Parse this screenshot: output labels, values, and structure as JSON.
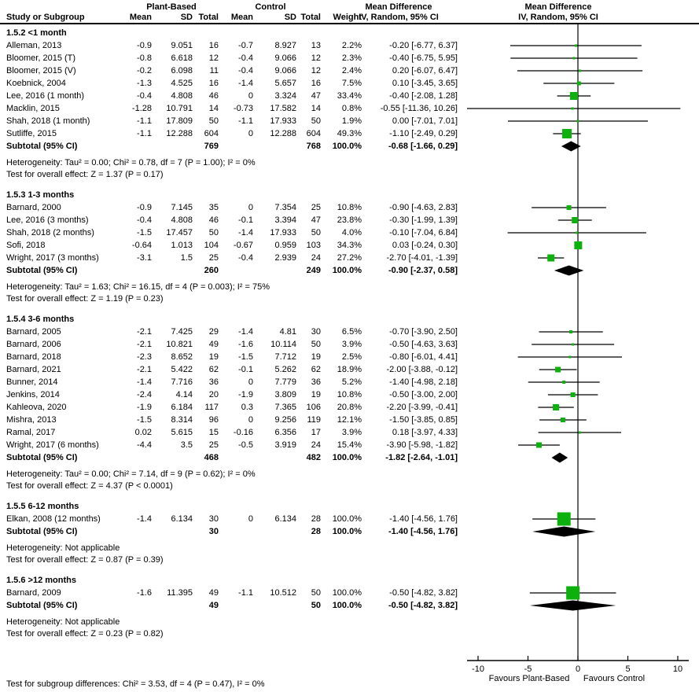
{
  "header": {
    "group1": "Plant-Based",
    "group2": "Control",
    "md_text": "Mean Difference",
    "md_plot": "Mean Difference",
    "study": "Study or Subgroup",
    "mean": "Mean",
    "sd": "SD",
    "total": "Total",
    "weight": "Weight",
    "ci": "IV, Random, 95% CI"
  },
  "labels": {
    "subtotal": "Subtotal (95% CI)"
  },
  "footer": "Test for subgroup differences: Chi² = 3.53, df = 4 (P = 0.47), I² = 0%",
  "axis": {
    "tick_values": [
      -10,
      -5,
      0,
      5,
      10
    ],
    "tick_labels": [
      "-10",
      "-5",
      "0",
      "5",
      "10"
    ],
    "favours_left": "Favours Plant-Based",
    "favours_right": "Favours Control"
  },
  "colors": {
    "square": "#0db10d",
    "diamond": "#000000",
    "line": "#000000",
    "text": "#000000",
    "background": "#ffffff"
  },
  "chart_data": {
    "type": "forest",
    "effect_measure": "Mean Difference  IV, Random, 95% CI",
    "x_range": [
      -11,
      11
    ],
    "groups": [
      {
        "label": "1.5.2 <1 month",
        "studies": [
          {
            "name": "Alleman, 2013",
            "mean1": "-0.9",
            "sd1": "9.051",
            "n1": "16",
            "mean2": "-0.7",
            "sd2": "8.927",
            "n2": "13",
            "weight": "2.2%",
            "weight_pct": 2.2,
            "ci_text": "-0.20 [-6.77, 6.37]",
            "md": -0.2,
            "lo": -6.77,
            "hi": 6.37
          },
          {
            "name": "Bloomer, 2015 (T)",
            "mean1": "-0.8",
            "sd1": "6.618",
            "n1": "12",
            "mean2": "-0.4",
            "sd2": "9.066",
            "n2": "12",
            "weight": "2.3%",
            "weight_pct": 2.3,
            "ci_text": "-0.40 [-6.75, 5.95]",
            "md": -0.4,
            "lo": -6.75,
            "hi": 5.95
          },
          {
            "name": "Bloomer, 2015 (V)",
            "mean1": "-0.2",
            "sd1": "6.098",
            "n1": "11",
            "mean2": "-0.4",
            "sd2": "9.066",
            "n2": "12",
            "weight": "2.4%",
            "weight_pct": 2.4,
            "ci_text": "0.20 [-6.07, 6.47]",
            "md": 0.2,
            "lo": -6.07,
            "hi": 6.47
          },
          {
            "name": "Koebnick, 2004",
            "mean1": "-1.3",
            "sd1": "4.525",
            "n1": "16",
            "mean2": "-1.4",
            "sd2": "5.657",
            "n2": "16",
            "weight": "7.5%",
            "weight_pct": 7.5,
            "ci_text": "0.10 [-3.45, 3.65]",
            "md": 0.1,
            "lo": -3.45,
            "hi": 3.65
          },
          {
            "name": "Lee, 2016 (1 month)",
            "mean1": "-0.4",
            "sd1": "4.808",
            "n1": "46",
            "mean2": "0",
            "sd2": "3.324",
            "n2": "47",
            "weight": "33.4%",
            "weight_pct": 33.4,
            "ci_text": "-0.40 [-2.08, 1.28]",
            "md": -0.4,
            "lo": -2.08,
            "hi": 1.28
          },
          {
            "name": "Macklin, 2015",
            "mean1": "-1.28",
            "sd1": "10.791",
            "n1": "14",
            "mean2": "-0.73",
            "sd2": "17.582",
            "n2": "14",
            "weight": "0.8%",
            "weight_pct": 0.8,
            "ci_text": "-0.55 [-11.36, 10.26]",
            "md": -0.55,
            "lo": -11.36,
            "hi": 10.26
          },
          {
            "name": "Shah, 2018 (1 month)",
            "mean1": "-1.1",
            "sd1": "17.809",
            "n1": "50",
            "mean2": "-1.1",
            "sd2": "17.933",
            "n2": "50",
            "weight": "1.9%",
            "weight_pct": 1.9,
            "ci_text": "0.00 [-7.01, 7.01]",
            "md": 0.0,
            "lo": -7.01,
            "hi": 7.01
          },
          {
            "name": "Sutliffe, 2015",
            "mean1": "-1.1",
            "sd1": "12.288",
            "n1": "604",
            "mean2": "0",
            "sd2": "12.288",
            "n2": "604",
            "weight": "49.3%",
            "weight_pct": 49.3,
            "ci_text": "-1.10 [-2.49, 0.29]",
            "md": -1.1,
            "lo": -2.49,
            "hi": 0.29
          }
        ],
        "subtotal": {
          "n1": "769",
          "n2": "768",
          "weight": "100.0%",
          "ci_text": "-0.68 [-1.66, 0.29]",
          "md": -0.68,
          "lo": -1.66,
          "hi": 0.29
        },
        "heterogeneity": "Heterogeneity: Tau² = 0.00; Chi² = 0.78, df = 7 (P = 1.00); I² = 0%",
        "overall_effect": "Test for overall effect: Z = 1.37 (P = 0.17)"
      },
      {
        "label": "1.5.3 1-3 months",
        "studies": [
          {
            "name": "Barnard, 2000",
            "mean1": "-0.9",
            "sd1": "7.145",
            "n1": "35",
            "mean2": "0",
            "sd2": "7.354",
            "n2": "25",
            "weight": "10.8%",
            "weight_pct": 10.8,
            "ci_text": "-0.90 [-4.63, 2.83]",
            "md": -0.9,
            "lo": -4.63,
            "hi": 2.83
          },
          {
            "name": "Lee, 2016 (3 months)",
            "mean1": "-0.4",
            "sd1": "4.808",
            "n1": "46",
            "mean2": "-0.1",
            "sd2": "3.394",
            "n2": "47",
            "weight": "23.8%",
            "weight_pct": 23.8,
            "ci_text": "-0.30 [-1.99, 1.39]",
            "md": -0.3,
            "lo": -1.99,
            "hi": 1.39
          },
          {
            "name": "Shah, 2018 (2 months)",
            "mean1": "-1.5",
            "sd1": "17.457",
            "n1": "50",
            "mean2": "-1.4",
            "sd2": "17.933",
            "n2": "50",
            "weight": "4.0%",
            "weight_pct": 4.0,
            "ci_text": "-0.10 [-7.04, 6.84]",
            "md": -0.1,
            "lo": -7.04,
            "hi": 6.84
          },
          {
            "name": "Sofi, 2018",
            "mean1": "-0.64",
            "sd1": "1.013",
            "n1": "104",
            "mean2": "-0.67",
            "sd2": "0.959",
            "n2": "103",
            "weight": "34.3%",
            "weight_pct": 34.3,
            "ci_text": "0.03 [-0.24, 0.30]",
            "md": 0.03,
            "lo": -0.24,
            "hi": 0.3
          },
          {
            "name": "Wright, 2017 (3 months)",
            "mean1": "-3.1",
            "sd1": "1.5",
            "n1": "25",
            "mean2": "-0.4",
            "sd2": "2.939",
            "n2": "24",
            "weight": "27.2%",
            "weight_pct": 27.2,
            "ci_text": "-2.70 [-4.01, -1.39]",
            "md": -2.7,
            "lo": -4.01,
            "hi": -1.39
          }
        ],
        "subtotal": {
          "n1": "260",
          "n2": "249",
          "weight": "100.0%",
          "ci_text": "-0.90 [-2.37, 0.58]",
          "md": -0.9,
          "lo": -2.37,
          "hi": 0.58
        },
        "heterogeneity": "Heterogeneity: Tau² = 1.63; Chi² = 16.15, df = 4 (P = 0.003); I² = 75%",
        "overall_effect": "Test for overall effect: Z = 1.19 (P = 0.23)"
      },
      {
        "label": "1.5.4 3-6 months",
        "studies": [
          {
            "name": "Barnard, 2005",
            "mean1": "-2.1",
            "sd1": "7.425",
            "n1": "29",
            "mean2": "-1.4",
            "sd2": "4.81",
            "n2": "30",
            "weight": "6.5%",
            "weight_pct": 6.5,
            "ci_text": "-0.70 [-3.90, 2.50]",
            "md": -0.7,
            "lo": -3.9,
            "hi": 2.5
          },
          {
            "name": "Barnard, 2006",
            "mean1": "-2.1",
            "sd1": "10.821",
            "n1": "49",
            "mean2": "-1.6",
            "sd2": "10.114",
            "n2": "50",
            "weight": "3.9%",
            "weight_pct": 3.9,
            "ci_text": "-0.50 [-4.63, 3.63]",
            "md": -0.5,
            "lo": -4.63,
            "hi": 3.63
          },
          {
            "name": "Barnard, 2018",
            "mean1": "-2.3",
            "sd1": "8.652",
            "n1": "19",
            "mean2": "-1.5",
            "sd2": "7.712",
            "n2": "19",
            "weight": "2.5%",
            "weight_pct": 2.5,
            "ci_text": "-0.80 [-6.01, 4.41]",
            "md": -0.8,
            "lo": -6.01,
            "hi": 4.41
          },
          {
            "name": "Barnard, 2021",
            "mean1": "-2.1",
            "sd1": "5.422",
            "n1": "62",
            "mean2": "-0.1",
            "sd2": "5.262",
            "n2": "62",
            "weight": "18.9%",
            "weight_pct": 18.9,
            "ci_text": "-2.00 [-3.88, -0.12]",
            "md": -2.0,
            "lo": -3.88,
            "hi": -0.12
          },
          {
            "name": "Bunner, 2014",
            "mean1": "-1.4",
            "sd1": "7.716",
            "n1": "36",
            "mean2": "0",
            "sd2": "7.779",
            "n2": "36",
            "weight": "5.2%",
            "weight_pct": 5.2,
            "ci_text": "-1.40 [-4.98, 2.18]",
            "md": -1.4,
            "lo": -4.98,
            "hi": 2.18
          },
          {
            "name": "Jenkins, 2014",
            "mean1": "-2.4",
            "sd1": "4.14",
            "n1": "20",
            "mean2": "-1.9",
            "sd2": "3.809",
            "n2": "19",
            "weight": "10.8%",
            "weight_pct": 10.8,
            "ci_text": "-0.50 [-3.00, 2.00]",
            "md": -0.5,
            "lo": -3.0,
            "hi": 2.0
          },
          {
            "name": "Kahleova, 2020",
            "mean1": "-1.9",
            "sd1": "6.184",
            "n1": "117",
            "mean2": "0.3",
            "sd2": "7.365",
            "n2": "106",
            "weight": "20.8%",
            "weight_pct": 20.8,
            "ci_text": "-2.20 [-3.99, -0.41]",
            "md": -2.2,
            "lo": -3.99,
            "hi": -0.41
          },
          {
            "name": "Mishra, 2013",
            "mean1": "-1.5",
            "sd1": "8.314",
            "n1": "96",
            "mean2": "0",
            "sd2": "9.256",
            "n2": "119",
            "weight": "12.1%",
            "weight_pct": 12.1,
            "ci_text": "-1.50 [-3.85, 0.85]",
            "md": -1.5,
            "lo": -3.85,
            "hi": 0.85
          },
          {
            "name": "Ramal, 2017",
            "mean1": "0.02",
            "sd1": "5.615",
            "n1": "15",
            "mean2": "-0.16",
            "sd2": "6.356",
            "n2": "17",
            "weight": "3.9%",
            "weight_pct": 3.9,
            "ci_text": "0.18 [-3.97, 4.33]",
            "md": 0.18,
            "lo": -3.97,
            "hi": 4.33
          },
          {
            "name": "Wright, 2017 (6 months)",
            "mean1": "-4.4",
            "sd1": "3.5",
            "n1": "25",
            "mean2": "-0.5",
            "sd2": "3.919",
            "n2": "24",
            "weight": "15.4%",
            "weight_pct": 15.4,
            "ci_text": "-3.90 [-5.98, -1.82]",
            "md": -3.9,
            "lo": -5.98,
            "hi": -1.82
          }
        ],
        "subtotal": {
          "n1": "468",
          "n2": "482",
          "weight": "100.0%",
          "ci_text": "-1.82 [-2.64, -1.01]",
          "md": -1.82,
          "lo": -2.64,
          "hi": -1.01
        },
        "heterogeneity": "Heterogeneity: Tau² = 0.00; Chi² = 7.14, df = 9 (P = 0.62); I² = 0%",
        "overall_effect": "Test for overall effect: Z = 4.37 (P < 0.0001)"
      },
      {
        "label": "1.5.5 6-12 months",
        "studies": [
          {
            "name": "Elkan, 2008 (12 months)",
            "mean1": "-1.4",
            "sd1": "6.134",
            "n1": "30",
            "mean2": "0",
            "sd2": "6.134",
            "n2": "28",
            "weight": "100.0%",
            "weight_pct": 100.0,
            "ci_text": "-1.40 [-4.56, 1.76]",
            "md": -1.4,
            "lo": -4.56,
            "hi": 1.76
          }
        ],
        "subtotal": {
          "n1": "30",
          "n2": "28",
          "weight": "100.0%",
          "ci_text": "-1.40 [-4.56, 1.76]",
          "md": -1.4,
          "lo": -4.56,
          "hi": 1.76
        },
        "heterogeneity": "Heterogeneity: Not applicable",
        "overall_effect": "Test for overall effect: Z = 0.87 (P = 0.39)"
      },
      {
        "label": "1.5.6 >12 months",
        "studies": [
          {
            "name": "Barnard, 2009",
            "mean1": "-1.6",
            "sd1": "11.395",
            "n1": "49",
            "mean2": "-1.1",
            "sd2": "10.512",
            "n2": "50",
            "weight": "100.0%",
            "weight_pct": 100.0,
            "ci_text": "-0.50 [-4.82, 3.82]",
            "md": -0.5,
            "lo": -4.82,
            "hi": 3.82
          }
        ],
        "subtotal": {
          "n1": "49",
          "n2": "50",
          "weight": "100.0%",
          "ci_text": "-0.50 [-4.82, 3.82]",
          "md": -0.5,
          "lo": -4.82,
          "hi": 3.82
        },
        "heterogeneity": "Heterogeneity: Not applicable",
        "overall_effect": "Test for overall effect: Z = 0.23 (P = 0.82)"
      }
    ]
  }
}
